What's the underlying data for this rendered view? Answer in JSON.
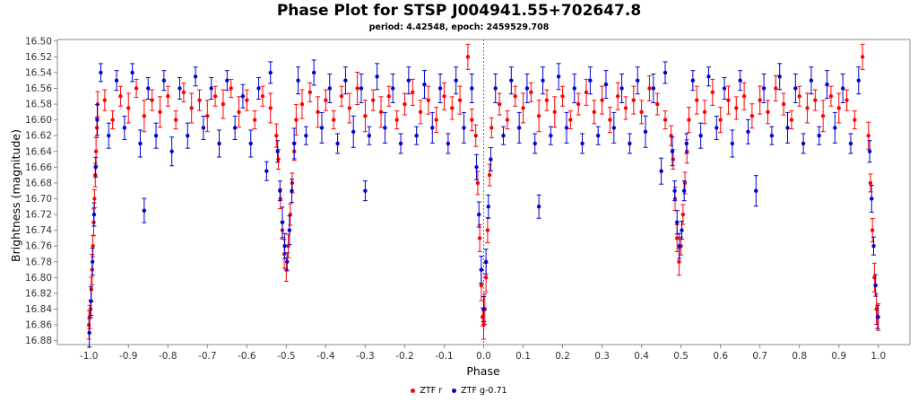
{
  "chart_data": {
    "type": "scatter",
    "title": "Phase Plot for STSP J004941.55+702647.8",
    "subtitle": "period: 4.42548, epoch: 2459529.708",
    "xlabel": "Phase",
    "ylabel": "Brightness (magnitude)",
    "xlim": [
      -1.08,
      1.08
    ],
    "ylim": [
      16.885,
      16.498
    ],
    "y_inverted": true,
    "x_ticks": [
      "-1.0",
      "-0.9",
      "-0.8",
      "-0.7",
      "-0.6",
      "-0.5",
      "-0.4",
      "-0.3",
      "-0.2",
      "-0.1",
      "0.0",
      "0.1",
      "0.2",
      "0.3",
      "0.4",
      "0.5",
      "0.6",
      "0.7",
      "0.8",
      "0.9",
      "1.0"
    ],
    "y_ticks": [
      "16.50",
      "16.52",
      "16.54",
      "16.56",
      "16.58",
      "16.60",
      "16.62",
      "16.64",
      "16.66",
      "16.68",
      "16.70",
      "16.72",
      "16.74",
      "16.76",
      "16.78",
      "16.80",
      "16.82",
      "16.84",
      "16.86",
      "16.88"
    ],
    "grid": false,
    "legend_position": "bottom",
    "reference_line_x": 0.0,
    "series": [
      {
        "name": "ZTF r",
        "color": "#ff0000",
        "points": [
          [
            -1.0,
            16.86
          ],
          [
            -0.998,
            16.85
          ],
          [
            -0.996,
            16.84
          ],
          [
            -0.994,
            16.815
          ],
          [
            -0.992,
            16.79
          ],
          [
            -0.99,
            16.76
          ],
          [
            -0.988,
            16.73
          ],
          [
            -0.986,
            16.7
          ],
          [
            -0.984,
            16.67
          ],
          [
            -0.982,
            16.64
          ],
          [
            -0.98,
            16.61
          ],
          [
            -0.978,
            16.58
          ],
          [
            -0.96,
            16.575
          ],
          [
            -0.94,
            16.6
          ],
          [
            -0.92,
            16.57
          ],
          [
            -0.9,
            16.585
          ],
          [
            -0.88,
            16.56
          ],
          [
            -0.86,
            16.595
          ],
          [
            -0.84,
            16.575
          ],
          [
            -0.82,
            16.59
          ],
          [
            -0.8,
            16.57
          ],
          [
            -0.78,
            16.6
          ],
          [
            -0.76,
            16.565
          ],
          [
            -0.74,
            16.585
          ],
          [
            -0.72,
            16.575
          ],
          [
            -0.7,
            16.595
          ],
          [
            -0.68,
            16.57
          ],
          [
            -0.66,
            16.58
          ],
          [
            -0.64,
            16.56
          ],
          [
            -0.62,
            16.59
          ],
          [
            -0.6,
            16.575
          ],
          [
            -0.58,
            16.6
          ],
          [
            -0.56,
            16.57
          ],
          [
            -0.54,
            16.585
          ],
          [
            -0.525,
            16.62
          ],
          [
            -0.52,
            16.65
          ],
          [
            -0.515,
            16.7
          ],
          [
            -0.51,
            16.74
          ],
          [
            -0.505,
            16.77
          ],
          [
            -0.5,
            16.79
          ],
          [
            -0.495,
            16.76
          ],
          [
            -0.49,
            16.72
          ],
          [
            -0.485,
            16.68
          ],
          [
            -0.48,
            16.64
          ],
          [
            -0.475,
            16.6
          ],
          [
            -0.46,
            16.58
          ],
          [
            -0.44,
            16.565
          ],
          [
            -0.42,
            16.59
          ],
          [
            -0.4,
            16.575
          ],
          [
            -0.38,
            16.6
          ],
          [
            -0.36,
            16.57
          ],
          [
            -0.34,
            16.585
          ],
          [
            -0.32,
            16.56
          ],
          [
            -0.3,
            16.595
          ],
          [
            -0.28,
            16.575
          ],
          [
            -0.26,
            16.59
          ],
          [
            -0.24,
            16.57
          ],
          [
            -0.22,
            16.6
          ],
          [
            -0.2,
            16.58
          ],
          [
            -0.18,
            16.565
          ],
          [
            -0.16,
            16.59
          ],
          [
            -0.14,
            16.575
          ],
          [
            -0.12,
            16.6
          ],
          [
            -0.1,
            16.57
          ],
          [
            -0.08,
            16.585
          ],
          [
            -0.06,
            16.575
          ],
          [
            -0.04,
            16.52
          ],
          [
            -0.03,
            16.6
          ],
          [
            -0.02,
            16.62
          ],
          [
            -0.015,
            16.68
          ],
          [
            -0.01,
            16.75
          ],
          [
            -0.006,
            16.81
          ],
          [
            -0.003,
            16.85
          ],
          [
            0.0,
            16.86
          ],
          [
            0.003,
            16.84
          ],
          [
            0.006,
            16.8
          ],
          [
            0.01,
            16.74
          ],
          [
            0.015,
            16.67
          ],
          [
            0.02,
            16.61
          ],
          [
            0.04,
            16.58
          ],
          [
            0.06,
            16.6
          ],
          [
            0.08,
            16.57
          ],
          [
            0.1,
            16.585
          ],
          [
            0.12,
            16.565
          ],
          [
            0.14,
            16.595
          ],
          [
            0.16,
            16.575
          ],
          [
            0.18,
            16.59
          ],
          [
            0.2,
            16.57
          ],
          [
            0.22,
            16.6
          ],
          [
            0.24,
            16.58
          ],
          [
            0.26,
            16.565
          ],
          [
            0.28,
            16.59
          ],
          [
            0.3,
            16.575
          ],
          [
            0.32,
            16.6
          ],
          [
            0.34,
            16.57
          ],
          [
            0.36,
            16.585
          ],
          [
            0.38,
            16.575
          ],
          [
            0.4,
            16.59
          ],
          [
            0.42,
            16.56
          ],
          [
            0.44,
            16.58
          ],
          [
            0.46,
            16.6
          ],
          [
            0.475,
            16.62
          ],
          [
            0.48,
            16.65
          ],
          [
            0.485,
            16.7
          ],
          [
            0.49,
            16.75
          ],
          [
            0.495,
            16.78
          ],
          [
            0.5,
            16.76
          ],
          [
            0.505,
            16.72
          ],
          [
            0.51,
            16.68
          ],
          [
            0.515,
            16.64
          ],
          [
            0.52,
            16.6
          ],
          [
            0.54,
            16.575
          ],
          [
            0.56,
            16.59
          ],
          [
            0.58,
            16.565
          ],
          [
            0.6,
            16.6
          ],
          [
            0.62,
            16.575
          ],
          [
            0.64,
            16.585
          ],
          [
            0.66,
            16.57
          ],
          [
            0.68,
            16.595
          ],
          [
            0.7,
            16.575
          ],
          [
            0.72,
            16.59
          ],
          [
            0.74,
            16.56
          ],
          [
            0.76,
            16.58
          ],
          [
            0.78,
            16.6
          ],
          [
            0.8,
            16.57
          ],
          [
            0.82,
            16.585
          ],
          [
            0.84,
            16.575
          ],
          [
            0.86,
            16.595
          ],
          [
            0.88,
            16.57
          ],
          [
            0.9,
            16.585
          ],
          [
            0.92,
            16.575
          ],
          [
            0.94,
            16.6
          ],
          [
            0.96,
            16.52
          ],
          [
            0.975,
            16.62
          ],
          [
            0.98,
            16.68
          ],
          [
            0.985,
            16.74
          ],
          [
            0.99,
            16.8
          ],
          [
            0.995,
            16.84
          ],
          [
            1.0,
            16.85
          ]
        ]
      },
      {
        "name": "ZTF g-0.71",
        "color": "#0000cc",
        "points": [
          [
            -0.999,
            16.87
          ],
          [
            -0.995,
            16.83
          ],
          [
            -0.991,
            16.78
          ],
          [
            -0.987,
            16.72
          ],
          [
            -0.983,
            16.66
          ],
          [
            -0.979,
            16.6
          ],
          [
            -0.97,
            16.54
          ],
          [
            -0.95,
            16.62
          ],
          [
            -0.93,
            16.55
          ],
          [
            -0.91,
            16.61
          ],
          [
            -0.89,
            16.54
          ],
          [
            -0.87,
            16.63
          ],
          [
            -0.86,
            16.715
          ],
          [
            -0.85,
            16.56
          ],
          [
            -0.83,
            16.62
          ],
          [
            -0.81,
            16.55
          ],
          [
            -0.79,
            16.64
          ],
          [
            -0.77,
            16.56
          ],
          [
            -0.75,
            16.62
          ],
          [
            -0.73,
            16.545
          ],
          [
            -0.71,
            16.61
          ],
          [
            -0.69,
            16.56
          ],
          [
            -0.67,
            16.63
          ],
          [
            -0.65,
            16.55
          ],
          [
            -0.63,
            16.61
          ],
          [
            -0.61,
            16.57
          ],
          [
            -0.59,
            16.63
          ],
          [
            -0.57,
            16.56
          ],
          [
            -0.55,
            16.665
          ],
          [
            -0.54,
            16.54
          ],
          [
            -0.522,
            16.64
          ],
          [
            -0.516,
            16.69
          ],
          [
            -0.51,
            16.73
          ],
          [
            -0.504,
            16.76
          ],
          [
            -0.498,
            16.78
          ],
          [
            -0.492,
            16.74
          ],
          [
            -0.486,
            16.69
          ],
          [
            -0.48,
            16.63
          ],
          [
            -0.47,
            16.55
          ],
          [
            -0.45,
            16.62
          ],
          [
            -0.43,
            16.54
          ],
          [
            -0.41,
            16.61
          ],
          [
            -0.39,
            16.56
          ],
          [
            -0.37,
            16.63
          ],
          [
            -0.35,
            16.55
          ],
          [
            -0.33,
            16.615
          ],
          [
            -0.31,
            16.56
          ],
          [
            -0.3,
            16.69
          ],
          [
            -0.29,
            16.62
          ],
          [
            -0.27,
            16.545
          ],
          [
            -0.25,
            16.61
          ],
          [
            -0.23,
            16.56
          ],
          [
            -0.21,
            16.63
          ],
          [
            -0.19,
            16.55
          ],
          [
            -0.17,
            16.62
          ],
          [
            -0.15,
            16.555
          ],
          [
            -0.13,
            16.61
          ],
          [
            -0.11,
            16.56
          ],
          [
            -0.09,
            16.63
          ],
          [
            -0.07,
            16.55
          ],
          [
            -0.05,
            16.61
          ],
          [
            -0.03,
            16.56
          ],
          [
            -0.018,
            16.66
          ],
          [
            -0.012,
            16.72
          ],
          [
            -0.006,
            16.79
          ],
          [
            0.0,
            16.84
          ],
          [
            0.006,
            16.78
          ],
          [
            0.012,
            16.71
          ],
          [
            0.018,
            16.65
          ],
          [
            0.03,
            16.56
          ],
          [
            0.05,
            16.62
          ],
          [
            0.07,
            16.55
          ],
          [
            0.09,
            16.61
          ],
          [
            0.11,
            16.56
          ],
          [
            0.13,
            16.63
          ],
          [
            0.14,
            16.71
          ],
          [
            0.15,
            16.55
          ],
          [
            0.17,
            16.62
          ],
          [
            0.19,
            16.545
          ],
          [
            0.21,
            16.61
          ],
          [
            0.23,
            16.56
          ],
          [
            0.25,
            16.63
          ],
          [
            0.27,
            16.55
          ],
          [
            0.29,
            16.62
          ],
          [
            0.31,
            16.555
          ],
          [
            0.33,
            16.61
          ],
          [
            0.35,
            16.56
          ],
          [
            0.37,
            16.63
          ],
          [
            0.39,
            16.55
          ],
          [
            0.41,
            16.615
          ],
          [
            0.43,
            16.56
          ],
          [
            0.45,
            16.665
          ],
          [
            0.46,
            16.54
          ],
          [
            0.478,
            16.64
          ],
          [
            0.484,
            16.69
          ],
          [
            0.49,
            16.73
          ],
          [
            0.496,
            16.76
          ],
          [
            0.502,
            16.74
          ],
          [
            0.508,
            16.69
          ],
          [
            0.514,
            16.63
          ],
          [
            0.53,
            16.55
          ],
          [
            0.55,
            16.62
          ],
          [
            0.57,
            16.545
          ],
          [
            0.59,
            16.61
          ],
          [
            0.61,
            16.56
          ],
          [
            0.63,
            16.63
          ],
          [
            0.65,
            16.55
          ],
          [
            0.67,
            16.615
          ],
          [
            0.69,
            16.69
          ],
          [
            0.71,
            16.56
          ],
          [
            0.73,
            16.62
          ],
          [
            0.75,
            16.545
          ],
          [
            0.77,
            16.61
          ],
          [
            0.79,
            16.56
          ],
          [
            0.81,
            16.63
          ],
          [
            0.83,
            16.55
          ],
          [
            0.85,
            16.62
          ],
          [
            0.87,
            16.555
          ],
          [
            0.89,
            16.61
          ],
          [
            0.91,
            16.56
          ],
          [
            0.93,
            16.63
          ],
          [
            0.95,
            16.55
          ],
          [
            0.978,
            16.64
          ],
          [
            0.983,
            16.7
          ],
          [
            0.988,
            16.76
          ],
          [
            0.993,
            16.81
          ],
          [
            0.998,
            16.85
          ]
        ]
      }
    ]
  }
}
